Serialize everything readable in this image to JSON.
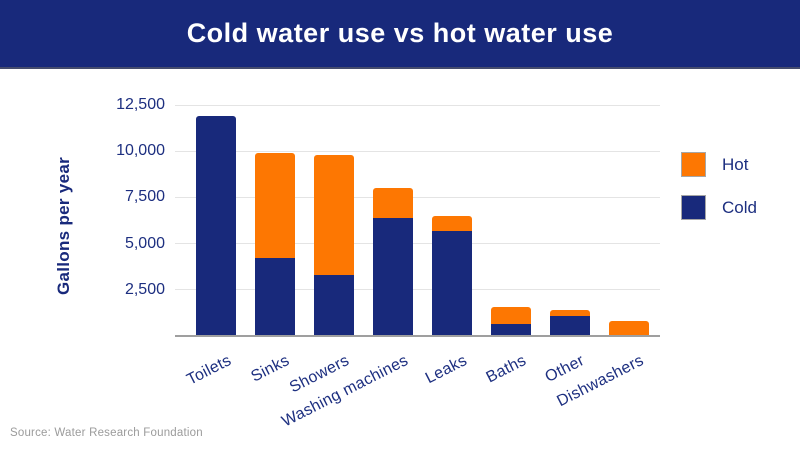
{
  "header": {
    "title": "Cold water use vs hot water use"
  },
  "source": "Source: Water Research Foundation",
  "colors": {
    "header_bg": "#18297b",
    "cold_navy": "#18297b",
    "hot_orange": "#fd7702",
    "axis_text": "#1d2f80",
    "gridline": "#e4e4e4",
    "axis_line": "#9f9f9f",
    "source_text": "#9b9b9b",
    "title_text": "#ffffff"
  },
  "chart_data": {
    "type": "bar",
    "stacked": true,
    "title": "Cold water use vs hot water use",
    "xlabel": "",
    "ylabel": "Gallons per year",
    "categories": [
      "Toilets",
      "Sinks",
      "Showers",
      "Washing machines",
      "Leaks",
      "Baths",
      "Other",
      "Dishwashers"
    ],
    "series": [
      {
        "name": "Cold",
        "color": "#18297b",
        "values": [
          11900,
          4200,
          3300,
          6400,
          5700,
          650,
          1100,
          0
        ]
      },
      {
        "name": "Hot",
        "color": "#fd7702",
        "values": [
          0,
          5700,
          6500,
          1600,
          800,
          900,
          300,
          800
        ]
      }
    ],
    "totals": [
      11900,
      9900,
      9800,
      8000,
      6500,
      1550,
      1400,
      800
    ],
    "ylim": [
      0,
      12500
    ],
    "yticks": [
      2500,
      5000,
      7500,
      10000,
      12500
    ],
    "ytick_labels": [
      "2,500",
      "5,000",
      "7,500",
      "10,000",
      "12,500"
    ],
    "grid": true,
    "legend_position": "right",
    "legend_order": [
      "Hot",
      "Cold"
    ]
  }
}
